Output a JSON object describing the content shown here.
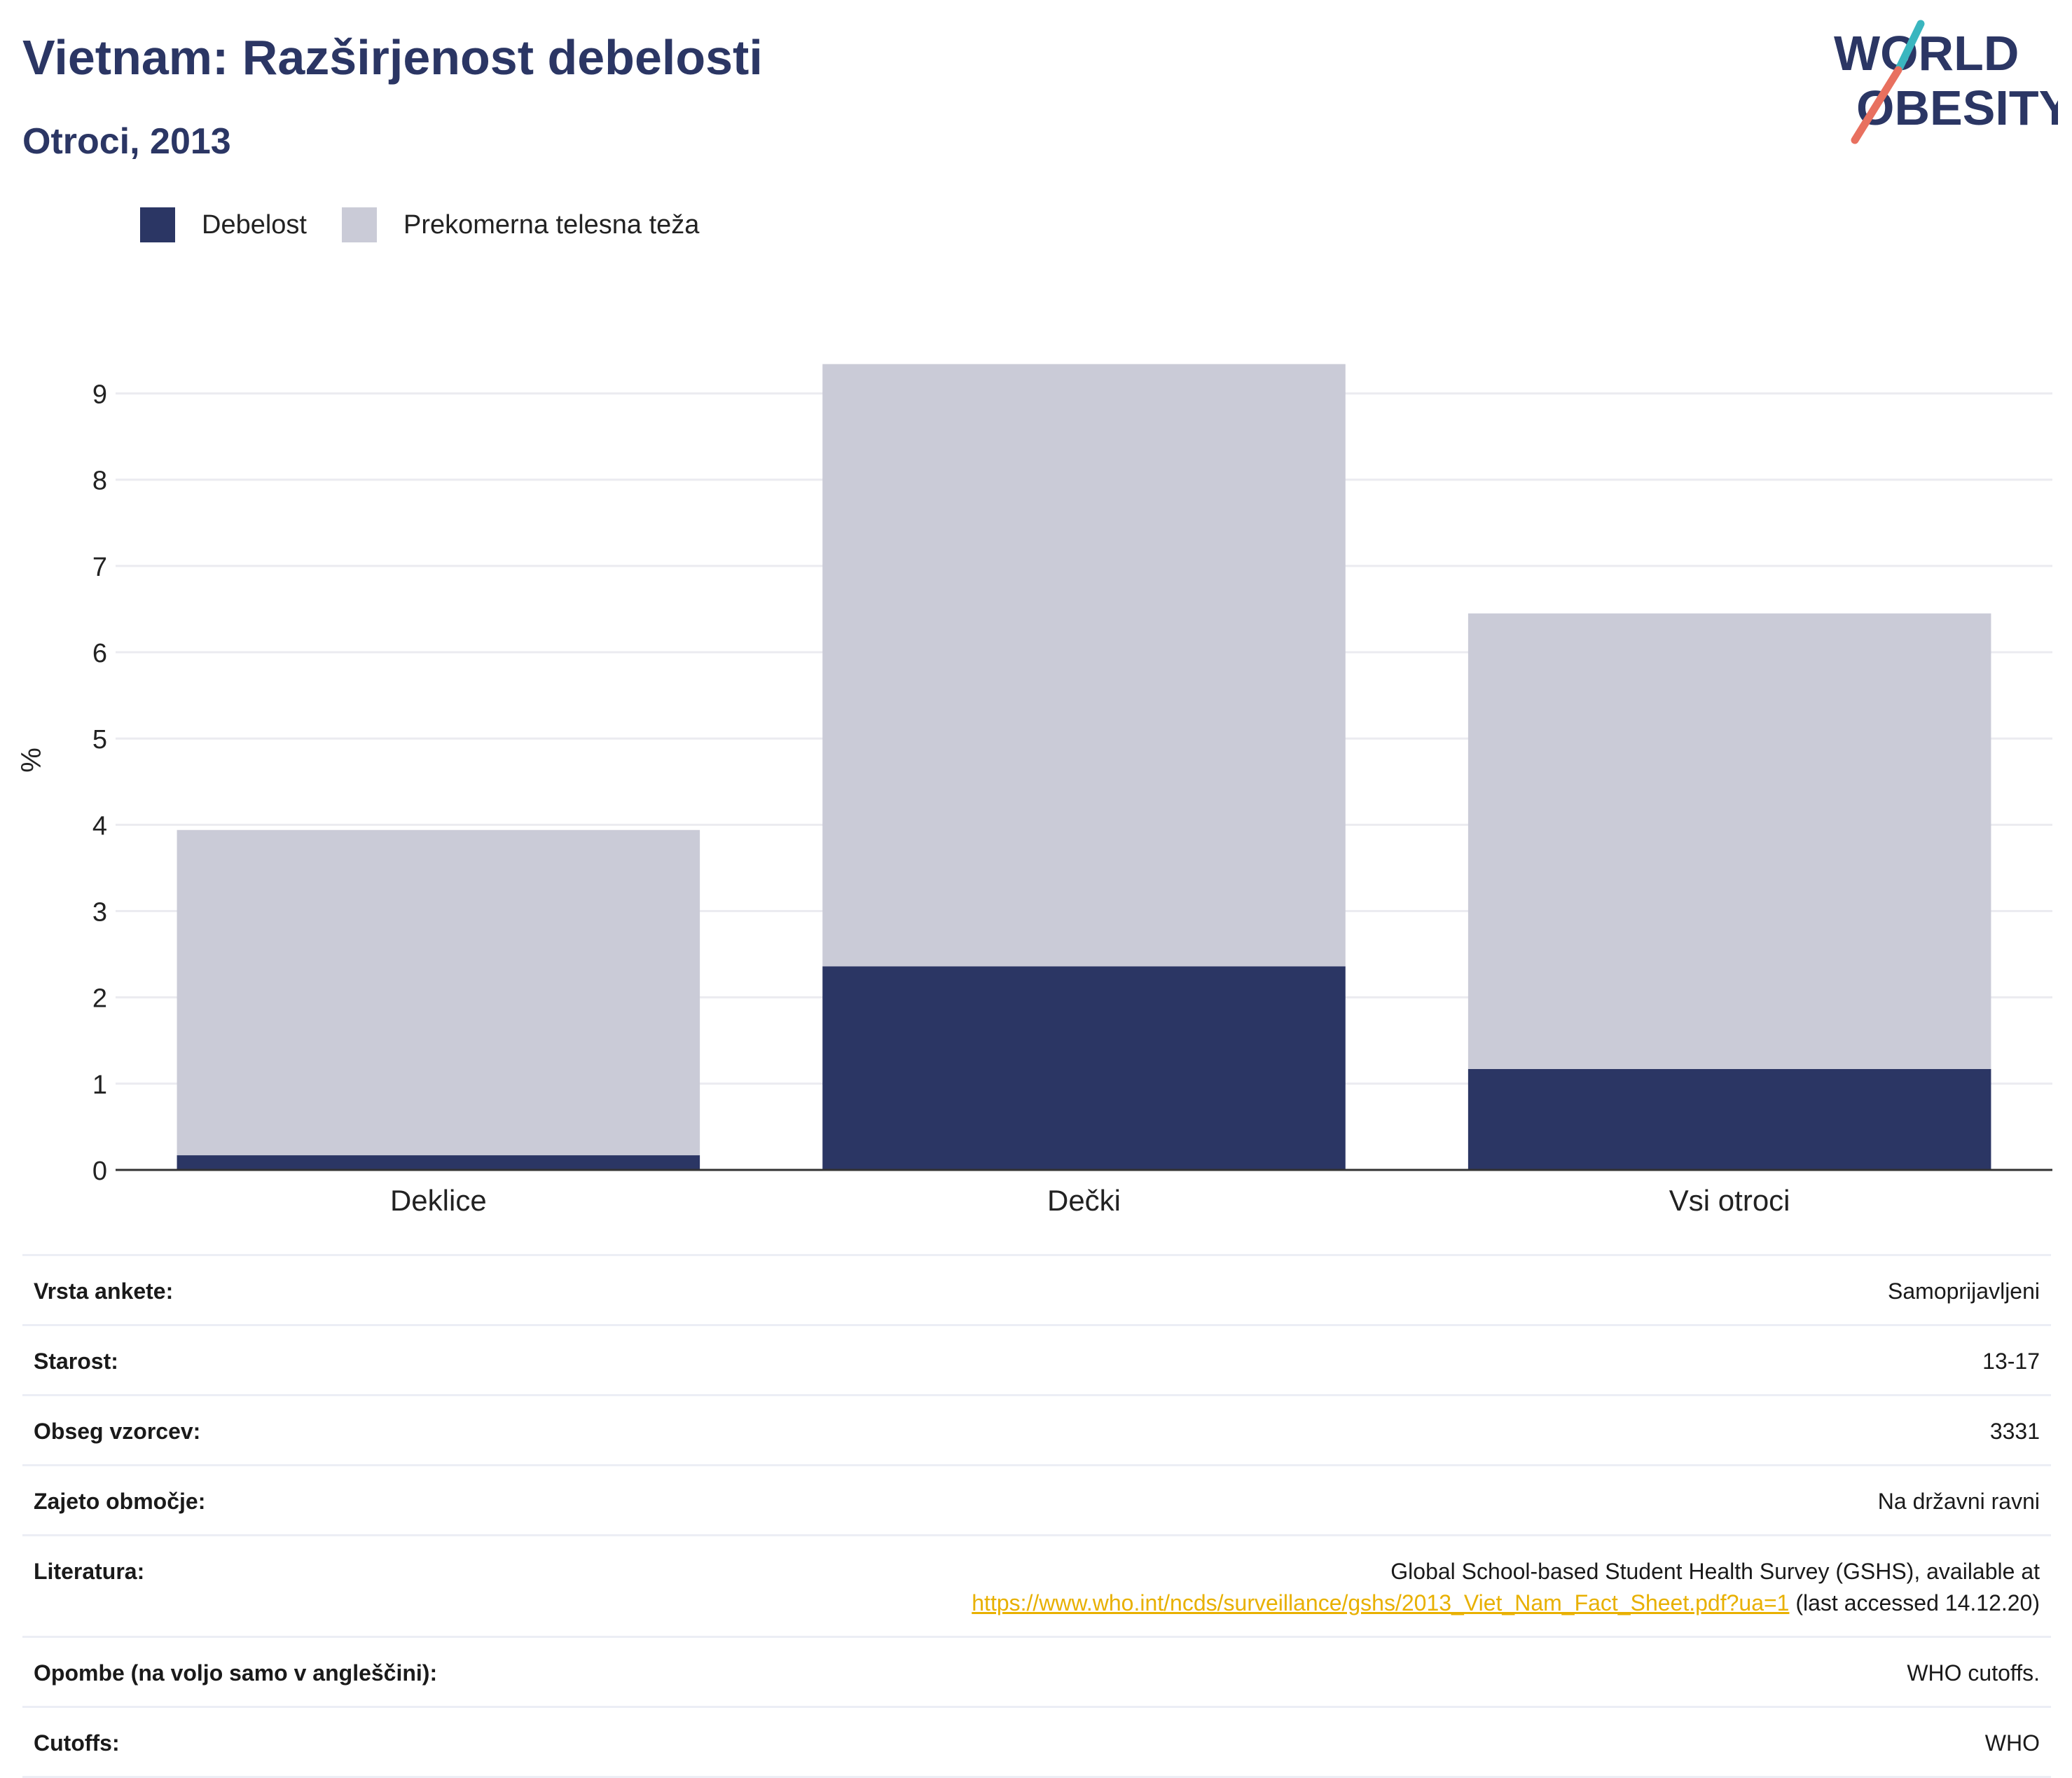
{
  "header": {
    "title": "Vietnam: Razširjenost debelosti",
    "subtitle": "Otroci, 2013"
  },
  "logo": {
    "line1": "WORLD",
    "line2": "OBESITY"
  },
  "colors": {
    "obesity": "#2b3664",
    "overweight": "#cacbd7",
    "accent": "#e8b000",
    "title": "#2b3664"
  },
  "legend": [
    {
      "label": "Debelost",
      "color": "#2b3664"
    },
    {
      "label": "Prekomerna telesna teža",
      "color": "#cacbd7"
    }
  ],
  "chart_data": {
    "type": "bar",
    "stacked": true,
    "categories": [
      "Deklice",
      "Dečki",
      "Vsi otroci"
    ],
    "series": [
      {
        "name": "Debelost",
        "values": [
          0.17,
          2.36,
          1.17
        ]
      },
      {
        "name": "Prekomerna telesna teža",
        "values": [
          3.77,
          6.98,
          5.28
        ]
      }
    ],
    "ylabel": "%",
    "ylim": [
      0,
      9.5
    ],
    "yticks": [
      0,
      1,
      2,
      3,
      4,
      5,
      6,
      7,
      8,
      9
    ],
    "grid": true,
    "legend_position": "top-left"
  },
  "info": {
    "rows": [
      {
        "label": "Vrsta ankete:",
        "value": "Samoprijavljeni"
      },
      {
        "label": "Starost:",
        "value": "13-17"
      },
      {
        "label": "Obseg vzorcev:",
        "value": "3331"
      },
      {
        "label": "Zajeto območje:",
        "value": "Na državni ravni"
      }
    ],
    "reference": {
      "label": "Literatura:",
      "text": "Global School-based Student Health Survey (GSHS), available at",
      "link": "https://www.who.int/ncds/surveillance/gshs/2013_Viet_Nam_Fact_Sheet.pdf?ua=1",
      "suffix": " (last accessed 14.12.20)"
    },
    "notes": {
      "label": "Opombe (na voljo samo v angleščini):",
      "value": "WHO cutoffs."
    },
    "cutoffs": {
      "label": "Cutoffs:",
      "value": "WHO"
    }
  }
}
